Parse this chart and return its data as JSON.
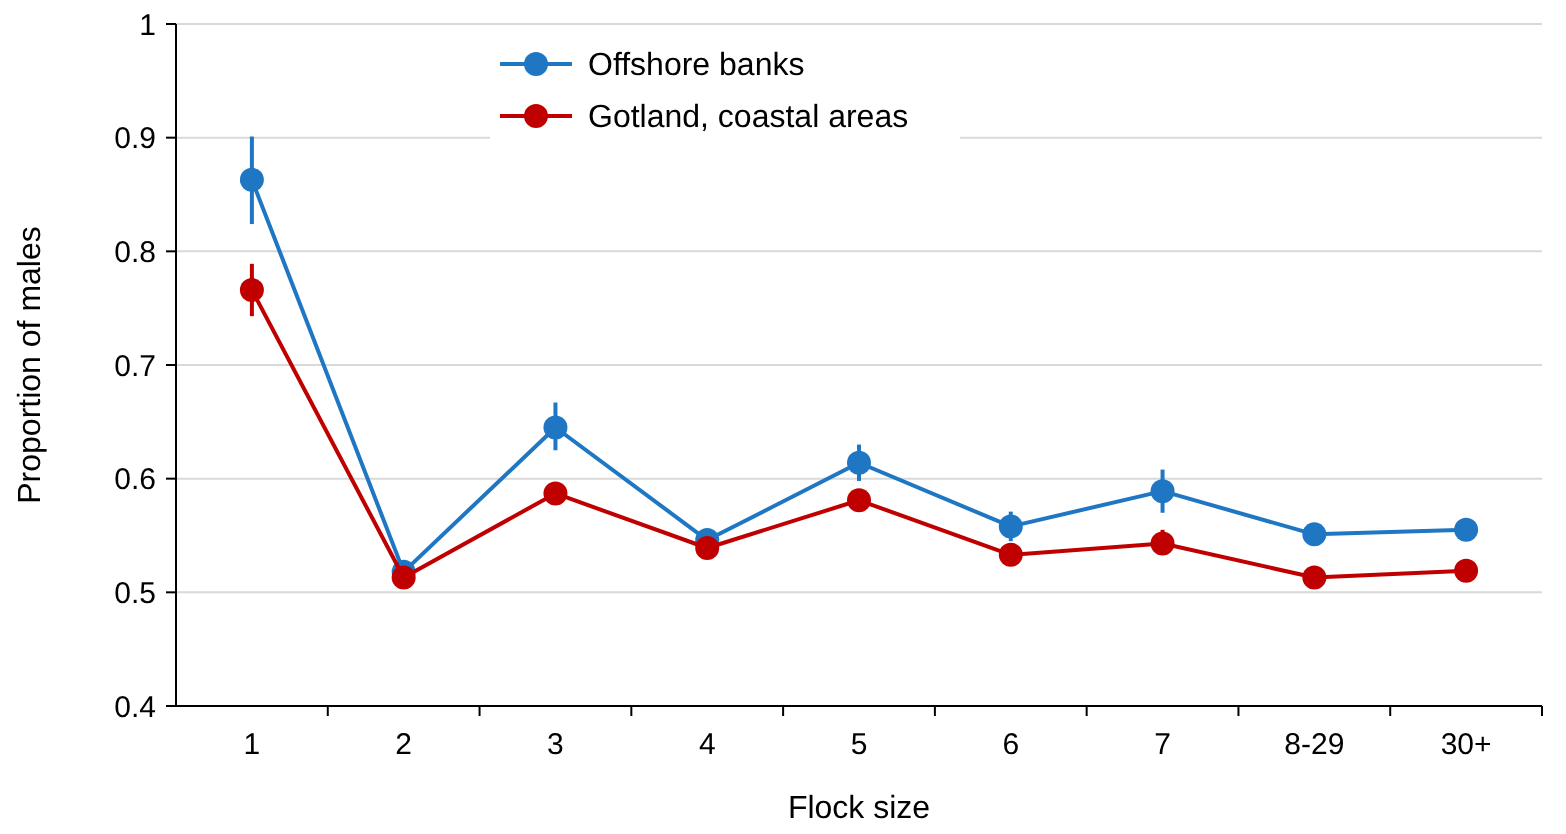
{
  "chart_data": {
    "type": "line",
    "xlabel": "Flock size",
    "ylabel": "Proportion of males",
    "categories": [
      "1",
      "2",
      "3",
      "4",
      "5",
      "6",
      "7",
      "8-29",
      "30+"
    ],
    "series": [
      {
        "name": "Offshore banks",
        "color": "#1f77c4",
        "values": [
          0.863,
          0.518,
          0.645,
          0.546,
          0.614,
          0.558,
          0.589,
          0.551,
          0.555
        ],
        "errors": [
          [
            0.824,
            0.901
          ],
          null,
          [
            0.625,
            0.667
          ],
          null,
          [
            0.598,
            0.63
          ],
          [
            0.545,
            0.571
          ],
          [
            0.57,
            0.608
          ],
          null,
          null
        ]
      },
      {
        "name": "Gotland, coastal areas",
        "color": "#c00000",
        "values": [
          0.766,
          0.513,
          0.587,
          0.539,
          0.581,
          0.533,
          0.543,
          0.513,
          0.519
        ],
        "errors": [
          [
            0.743,
            0.789
          ],
          null,
          null,
          null,
          null,
          null,
          [
            0.533,
            0.555
          ],
          null,
          null
        ]
      }
    ],
    "ylim": [
      0.4,
      1
    ],
    "yticks": [
      0.4,
      0.5,
      0.6,
      0.7,
      0.8,
      0.9,
      1
    ],
    "grid": "y",
    "legend": "top",
    "marker": "circle",
    "line_style": "solid"
  }
}
